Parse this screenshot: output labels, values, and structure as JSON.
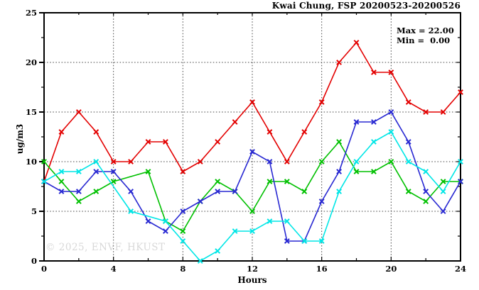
{
  "chart": {
    "title": "Kwai Chung, FSP 20200523-20200526",
    "max_label": "Max = 22.00",
    "min_label": "Min =  0.00",
    "ylabel": "ug/m3",
    "xlabel": "Hours",
    "watermark": "© 2025, ENVF, HKUST"
  },
  "chart_data": {
    "type": "line",
    "title": "Kwai Chung, FSP 20200523-20200526",
    "xlabel": "Hours",
    "ylabel": "ug/m3",
    "annotations": {
      "max": 22.0,
      "min": 0.0
    },
    "xlim": [
      0,
      24
    ],
    "ylim": [
      0,
      25
    ],
    "x_ticks": [
      0,
      4,
      8,
      12,
      16,
      20,
      24
    ],
    "y_ticks": [
      0,
      5,
      10,
      15,
      20,
      25
    ],
    "x_minor_ticks": [
      2,
      6,
      10,
      14,
      18,
      22
    ],
    "y_minor_ticks": [
      2.5,
      7.5,
      12.5,
      17.5,
      22.5
    ],
    "grid_x": [
      4,
      8,
      12,
      16,
      20
    ],
    "grid_y": [
      5,
      10,
      15,
      20
    ],
    "grid_on": true,
    "legend": "none",
    "x": [
      0,
      1,
      2,
      3,
      4,
      5,
      6,
      7,
      8,
      9,
      10,
      11,
      12,
      13,
      14,
      15,
      16,
      17,
      18,
      19,
      20,
      21,
      22,
      23,
      24
    ],
    "series": [
      {
        "name": "series-red",
        "color": "#e30000",
        "values": [
          8,
          13,
          15,
          13,
          10,
          10,
          12,
          12,
          9,
          10,
          12,
          14,
          16,
          13,
          10,
          13,
          16,
          20,
          22,
          19,
          19,
          16,
          15,
          15,
          17
        ]
      },
      {
        "name": "series-green",
        "color": "#00c000",
        "values": [
          10,
          8,
          6,
          7,
          8,
          null,
          9,
          4,
          3,
          6,
          8,
          7,
          5,
          8,
          8,
          7,
          10,
          12,
          9,
          9,
          10,
          7,
          6,
          8,
          8
        ]
      },
      {
        "name": "series-blue",
        "color": "#2828d2",
        "values": [
          8,
          7,
          7,
          9,
          9,
          7,
          4,
          3,
          5,
          6,
          7,
          7,
          11,
          10,
          2,
          2,
          6,
          9,
          14,
          14,
          15,
          12,
          7,
          5,
          8
        ]
      },
      {
        "name": "series-cyan",
        "color": "#00e6e6",
        "values": [
          8,
          9,
          9,
          10,
          null,
          5,
          null,
          4,
          2,
          0,
          1,
          3,
          3,
          4,
          4,
          2,
          2,
          7,
          10,
          12,
          13,
          10,
          9,
          7,
          10
        ]
      }
    ],
    "plot_colors": {
      "axis": "#000000",
      "grid": "#404040",
      "background": "#ffffff"
    }
  }
}
